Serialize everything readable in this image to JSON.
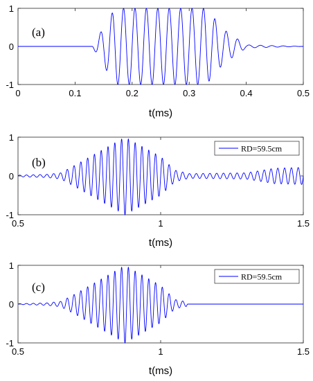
{
  "chart_data": [
    {
      "type": "line",
      "panel_label": "(a)",
      "xlabel": "t(ms)",
      "xlim": [
        0,
        0.5
      ],
      "ylim": [
        -1,
        1
      ],
      "xticks": [
        "0",
        "0.1",
        "0.2",
        "0.3",
        "0.4",
        "0.5"
      ],
      "yticks": [
        "-1",
        "0",
        "1"
      ],
      "legend": null,
      "series": [
        {
          "color": "#0000ff",
          "description": "windowed sinusoid burst: zero until ~0.13 ms, full amplitude ±1 from ~0.17 to ~0.33 ms, decaying ringing to ~0.4 ms",
          "carrier_freq_khz": 50,
          "envelope": {
            "x": [
              0,
              0.13,
              0.17,
              0.33,
              0.36,
              0.4,
              0.5
            ],
            "y": [
              0,
              0,
              1,
              1,
              0.45,
              0.04,
              0
            ]
          }
        }
      ]
    },
    {
      "type": "line",
      "panel_label": "(b)",
      "xlabel": "t(ms)",
      "xlim": [
        0.5,
        1.5
      ],
      "ylim": [
        -1,
        1
      ],
      "xticks": [
        "0.5",
        "1",
        "1.5"
      ],
      "yticks": [
        "-1",
        "0",
        "1"
      ],
      "legend": "top-right",
      "series": [
        {
          "name": "RD=59.5cm",
          "color": "#0000ff",
          "carrier_freq_khz": 42,
          "envelope": {
            "x": [
              0.5,
              0.6,
              0.65,
              0.7,
              0.875,
              1.0,
              1.05,
              1.1,
              1.3,
              1.4,
              1.5
            ],
            "y": [
              0.02,
              0.04,
              0.08,
              0.28,
              1,
              0.5,
              0.15,
              0.06,
              0.08,
              0.2,
              0.22
            ]
          }
        }
      ]
    },
    {
      "type": "line",
      "panel_label": "(c)",
      "xlabel": "t(ms)",
      "xlim": [
        0.5,
        1.5
      ],
      "ylim": [
        -1,
        1
      ],
      "xticks": [
        "0.5",
        "1",
        "1.5"
      ],
      "yticks": [
        "-1",
        "0",
        "1"
      ],
      "legend": "top-right",
      "series": [
        {
          "name": "RD=59.5cm",
          "color": "#0000ff",
          "carrier_freq_khz": 42,
          "envelope": {
            "x": [
              0.5,
              0.6,
              0.65,
              0.7,
              0.875,
              1.0,
              1.05,
              1.09,
              1.095,
              1.5
            ],
            "y": [
              0.01,
              0.03,
              0.07,
              0.26,
              1,
              0.48,
              0.12,
              0.06,
              0,
              0
            ]
          }
        }
      ]
    }
  ]
}
